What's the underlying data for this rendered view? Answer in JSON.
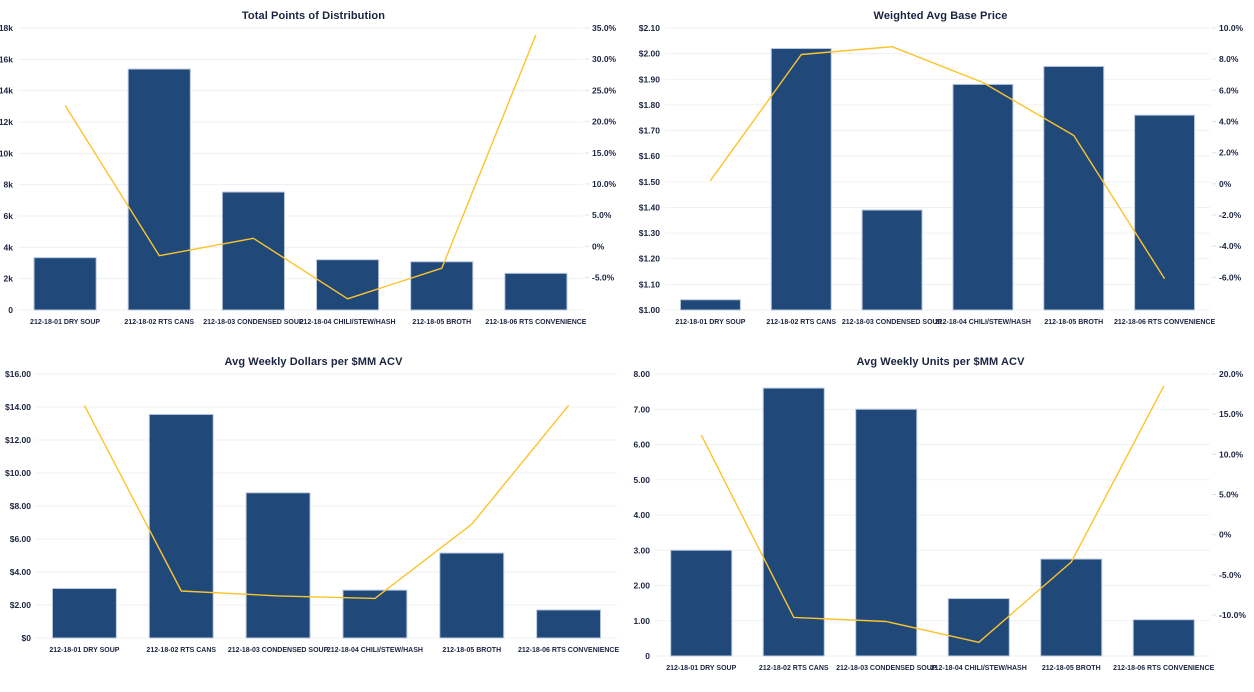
{
  "colors": {
    "bar_fill": "#20497a",
    "bar_border": "#b9c9dd",
    "line": "#fcc32c",
    "text": "#1b2440",
    "grid": "#f0f1f4",
    "background": "#ffffff"
  },
  "chart_data": [
    {
      "title": "Total Points of Distribution",
      "type": "bar+line",
      "grid": true,
      "legend": false,
      "categories": [
        "212-18-01 DRY SOUP",
        "212-18-02 RTS CANS",
        "212-18-03 CONDENSED SOUP",
        "212-18-04 CHILI/STEW/HASH",
        "212-18-05 BROTH",
        "212-18-06 RTS CONVENIENCE"
      ],
      "bar_series": {
        "values": [
          3340,
          15380,
          7530,
          3210,
          3080,
          2340
        ]
      },
      "line_series": {
        "scale": "right",
        "values": [
          22.6,
          -1.5,
          1.3,
          -8.4,
          -3.5,
          33.9
        ]
      },
      "left_axis": {
        "min": 0,
        "max": 18000,
        "ticks": [
          {
            "v": 18000,
            "label": "18k"
          },
          {
            "v": 16000,
            "label": "16k"
          },
          {
            "v": 14000,
            "label": "14k"
          },
          {
            "v": 12000,
            "label": "12k"
          },
          {
            "v": 10000,
            "label": "10k"
          },
          {
            "v": 8000,
            "label": "8k"
          },
          {
            "v": 6000,
            "label": "6k"
          },
          {
            "v": 4000,
            "label": "4k"
          },
          {
            "v": 2000,
            "label": "2k"
          },
          {
            "v": 0,
            "label": "0"
          }
        ]
      },
      "right_axis": {
        "min": -10.2,
        "max": 35,
        "ticks": [
          {
            "v": 35,
            "label": "35.0%"
          },
          {
            "v": 30,
            "label": "30.0%"
          },
          {
            "v": 25,
            "label": "25.0%"
          },
          {
            "v": 20,
            "label": "20.0%"
          },
          {
            "v": 15,
            "label": "15.0%"
          },
          {
            "v": 10,
            "label": "10.0%"
          },
          {
            "v": 5,
            "label": "5.0%"
          },
          {
            "v": 0,
            "label": "0%"
          },
          {
            "v": -5,
            "label": "-5.0%"
          }
        ]
      }
    },
    {
      "title": "Weighted Avg Base Price",
      "type": "bar+line",
      "grid": true,
      "legend": false,
      "categories": [
        "212-18-01 DRY SOUP",
        "212-18-02 RTS CANS",
        "212-18-03 CONDENSED SOUP",
        "212-18-04 CHILI/STEW/HASH",
        "212-18-05 BROTH",
        "212-18-06 RTS CONVENIENCE"
      ],
      "bar_series": {
        "values": [
          1.04,
          2.02,
          1.39,
          1.88,
          1.95,
          1.76
        ]
      },
      "line_series": {
        "scale": "right",
        "values": [
          0.2,
          8.3,
          8.8,
          6.5,
          3.1,
          -6.1
        ]
      },
      "left_axis": {
        "min": 1.0,
        "max": 2.1,
        "ticks": [
          {
            "v": 2.1,
            "label": "$2.10"
          },
          {
            "v": 2.0,
            "label": "$2.00"
          },
          {
            "v": 1.9,
            "label": "$1.90"
          },
          {
            "v": 1.8,
            "label": "$1.80"
          },
          {
            "v": 1.7,
            "label": "$1.70"
          },
          {
            "v": 1.6,
            "label": "$1.60"
          },
          {
            "v": 1.5,
            "label": "$1.50"
          },
          {
            "v": 1.4,
            "label": "$1.40"
          },
          {
            "v": 1.3,
            "label": "$1.30"
          },
          {
            "v": 1.2,
            "label": "$1.20"
          },
          {
            "v": 1.1,
            "label": "$1.10"
          },
          {
            "v": 1.0,
            "label": "$1.00"
          }
        ]
      },
      "right_axis": {
        "min": -8.1,
        "max": 10,
        "ticks": [
          {
            "v": 10,
            "label": "10.0%"
          },
          {
            "v": 8,
            "label": "8.0%"
          },
          {
            "v": 6,
            "label": "6.0%"
          },
          {
            "v": 4,
            "label": "4.0%"
          },
          {
            "v": 2,
            "label": "2.0%"
          },
          {
            "v": 0,
            "label": "0%"
          },
          {
            "v": -2,
            "label": "-2.0%"
          },
          {
            "v": -4,
            "label": "-4.0%"
          },
          {
            "v": -6,
            "label": "-6.0%"
          }
        ]
      }
    },
    {
      "title": "Avg Weekly Dollars per $MM ACV",
      "type": "bar+line",
      "grid": true,
      "legend": false,
      "categories": [
        "212-18-01 DRY SOUP",
        "212-18-02 RTS CANS",
        "212-18-03 CONDENSED SOUP",
        "212-18-04 CHILI/STEW/HASH",
        "212-18-05 BROTH",
        "212-18-06 RTS CONVENIENCE"
      ],
      "bar_series": {
        "values": [
          3.0,
          13.55,
          8.8,
          2.9,
          5.15,
          1.7
        ]
      },
      "line_series": {
        "scale": "left",
        "values": [
          14.1,
          2.85,
          2.55,
          2.4,
          6.9,
          14.1
        ]
      },
      "left_axis": {
        "min": 0,
        "max": 16,
        "ticks": [
          {
            "v": 16,
            "label": "$16.00"
          },
          {
            "v": 14,
            "label": "$14.00"
          },
          {
            "v": 12,
            "label": "$12.00"
          },
          {
            "v": 10,
            "label": "$10.00"
          },
          {
            "v": 8,
            "label": "$8.00"
          },
          {
            "v": 6,
            "label": "$6.00"
          },
          {
            "v": 4,
            "label": "$4.00"
          },
          {
            "v": 2,
            "label": "$2.00"
          },
          {
            "v": 0,
            "label": "$0"
          }
        ]
      },
      "right_axis": null
    },
    {
      "title": "Avg Weekly Units per $MM ACV",
      "type": "bar+line",
      "grid": true,
      "legend": false,
      "categories": [
        "212-18-01 DRY SOUP",
        "212-18-02 RTS CANS",
        "212-18-03 CONDENSED SOUP",
        "212-18-04 CHILI/STEW/HASH",
        "212-18-05 BROTH",
        "212-18-06 RTS CONVENIENCE"
      ],
      "bar_series": {
        "values": [
          3.0,
          7.6,
          7.0,
          1.63,
          2.75,
          1.03
        ]
      },
      "line_series": {
        "scale": "right",
        "values": [
          12.4,
          -10.3,
          -10.8,
          -13.4,
          -3.4,
          18.5
        ]
      },
      "left_axis": {
        "min": 0,
        "max": 8,
        "ticks": [
          {
            "v": 8,
            "label": "8.00"
          },
          {
            "v": 7,
            "label": "7.00"
          },
          {
            "v": 6,
            "label": "6.00"
          },
          {
            "v": 5,
            "label": "5.00"
          },
          {
            "v": 4,
            "label": "4.00"
          },
          {
            "v": 3,
            "label": "3.00"
          },
          {
            "v": 2,
            "label": "2.00"
          },
          {
            "v": 1,
            "label": "1.00"
          },
          {
            "v": 0,
            "label": "0"
          }
        ]
      },
      "right_axis": {
        "min": -15.1,
        "max": 20,
        "ticks": [
          {
            "v": 20,
            "label": "20.0%"
          },
          {
            "v": 15,
            "label": "15.0%"
          },
          {
            "v": 10,
            "label": "10.0%"
          },
          {
            "v": 5,
            "label": "5.0%"
          },
          {
            "v": 0,
            "label": "0%"
          },
          {
            "v": -5,
            "label": "-5.0%"
          },
          {
            "v": -10,
            "label": "-10.0%"
          }
        ]
      }
    }
  ]
}
